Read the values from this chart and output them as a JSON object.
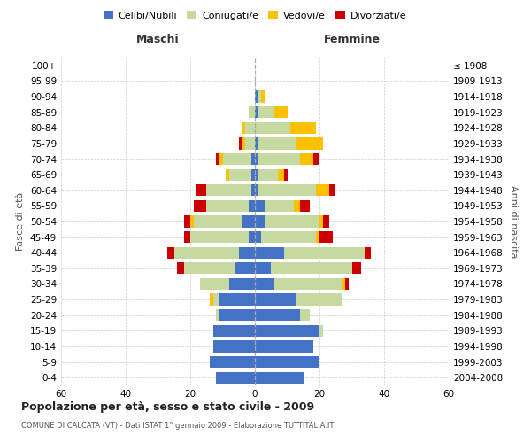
{
  "age_groups": [
    "0-4",
    "5-9",
    "10-14",
    "15-19",
    "20-24",
    "25-29",
    "30-34",
    "35-39",
    "40-44",
    "45-49",
    "50-54",
    "55-59",
    "60-64",
    "65-69",
    "70-74",
    "75-79",
    "80-84",
    "85-89",
    "90-94",
    "95-99",
    "100+"
  ],
  "birth_years": [
    "2004-2008",
    "1999-2003",
    "1994-1998",
    "1989-1993",
    "1984-1988",
    "1979-1983",
    "1974-1978",
    "1969-1973",
    "1964-1968",
    "1959-1963",
    "1954-1958",
    "1949-1953",
    "1944-1948",
    "1939-1943",
    "1934-1938",
    "1929-1933",
    "1924-1928",
    "1919-1923",
    "1914-1918",
    "1909-1913",
    "≤ 1908"
  ],
  "colors": {
    "celibi": "#4472C4",
    "coniugati": "#c5d9a0",
    "vedovi": "#ffc000",
    "divorziati": "#cc0000"
  },
  "maschi": {
    "celibi": [
      12,
      14,
      13,
      13,
      11,
      11,
      8,
      6,
      5,
      2,
      4,
      2,
      1,
      1,
      1,
      0,
      0,
      0,
      0,
      0,
      0
    ],
    "coniugati": [
      0,
      0,
      0,
      0,
      1,
      2,
      9,
      16,
      20,
      18,
      15,
      13,
      14,
      7,
      9,
      3,
      3,
      2,
      0,
      0,
      0
    ],
    "vedovi": [
      0,
      0,
      0,
      0,
      0,
      1,
      0,
      0,
      0,
      0,
      1,
      0,
      0,
      1,
      1,
      1,
      1,
      0,
      0,
      0,
      0
    ],
    "divorziati": [
      0,
      0,
      0,
      0,
      0,
      0,
      0,
      2,
      2,
      2,
      2,
      4,
      3,
      0,
      1,
      1,
      0,
      0,
      0,
      0,
      0
    ]
  },
  "femmine": {
    "nubili": [
      15,
      20,
      18,
      20,
      14,
      13,
      6,
      5,
      9,
      2,
      3,
      3,
      1,
      1,
      1,
      1,
      0,
      1,
      1,
      0,
      0
    ],
    "coniugate": [
      0,
      0,
      0,
      1,
      3,
      14,
      21,
      25,
      25,
      17,
      17,
      9,
      18,
      6,
      13,
      12,
      11,
      5,
      1,
      0,
      0
    ],
    "vedove": [
      0,
      0,
      0,
      0,
      0,
      0,
      1,
      0,
      0,
      1,
      1,
      2,
      4,
      2,
      4,
      8,
      8,
      4,
      1,
      0,
      0
    ],
    "divorziate": [
      0,
      0,
      0,
      0,
      0,
      0,
      1,
      3,
      2,
      4,
      2,
      3,
      2,
      1,
      2,
      0,
      0,
      0,
      0,
      0,
      0
    ]
  },
  "title": "Popolazione per età, sesso e stato civile - 2009",
  "subtitle": "COMUNE DI CALCATA (VT) - Dati ISTAT 1° gennaio 2009 - Elaborazione TUTTITALIA.IT",
  "header_maschi": "Maschi",
  "header_femmine": "Femmine",
  "ylabel_left": "Fasce di età",
  "ylabel_right": "Anni di nascita",
  "xlim": 60,
  "legend_labels": [
    "Celibi/Nubili",
    "Coniugati/e",
    "Vedovi/e",
    "Divorziati/e"
  ],
  "background_color": "#ffffff",
  "grid_color": "#cccccc"
}
